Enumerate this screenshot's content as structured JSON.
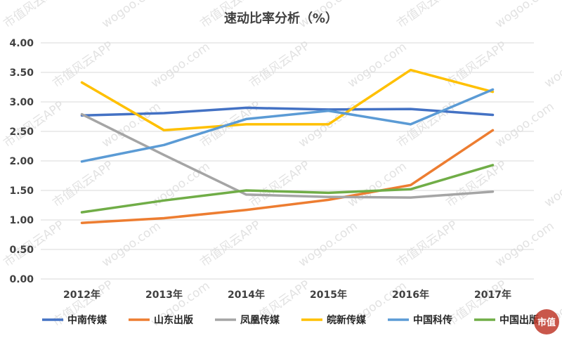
{
  "chart_data": {
    "type": "line",
    "title": "速动比率分析（%）",
    "categories": [
      "2012年",
      "2013年",
      "2014年",
      "2015年",
      "2016年",
      "2017年"
    ],
    "ylim": [
      0,
      4
    ],
    "yticks": [
      "0.00",
      "0.50",
      "1.00",
      "1.50",
      "2.00",
      "2.50",
      "3.00",
      "3.50",
      "4.00"
    ],
    "grid": true,
    "legend_position": "bottom",
    "series": [
      {
        "name": "中南传媒",
        "color": "#4472C4",
        "values": [
          2.77,
          2.81,
          2.9,
          2.87,
          2.88,
          2.78
        ]
      },
      {
        "name": "山东出版",
        "color": "#ED7D31",
        "values": [
          0.95,
          1.03,
          1.17,
          1.34,
          1.59,
          2.52
        ]
      },
      {
        "name": "凤凰传媒",
        "color": "#A5A5A5",
        "values": [
          2.79,
          2.1,
          1.43,
          1.39,
          1.38,
          1.48
        ]
      },
      {
        "name": "皖新传媒",
        "color": "#FFC000",
        "values": [
          3.33,
          2.52,
          2.62,
          2.62,
          3.54,
          3.17
        ]
      },
      {
        "name": "中国科传",
        "color": "#5B9BD5",
        "values": [
          1.99,
          2.27,
          2.71,
          2.85,
          2.62,
          3.21
        ]
      },
      {
        "name": "中国出版",
        "color": "#70AD47",
        "values": [
          1.13,
          1.33,
          1.5,
          1.46,
          1.52,
          1.93
        ]
      }
    ]
  },
  "watermark": {
    "text_cn": "市值风云APP",
    "text_url": "wogoo.com",
    "logo_text": "市值"
  }
}
